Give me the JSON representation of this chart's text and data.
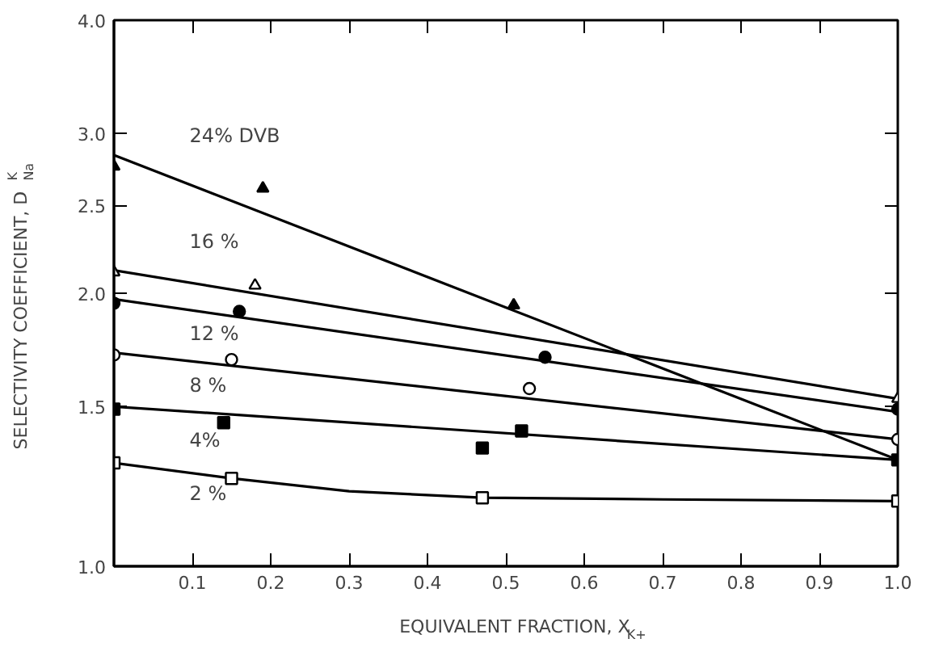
{
  "chart_data": {
    "type": "scatter",
    "xlabel": "EQUIVALENT FRACTION, X$_{K+}$",
    "ylabel": "SELECTIVITY COEFFICIENT, D$^{K}$$_{Na}$",
    "log": "y",
    "grid": false,
    "xlim": [
      0,
      1.0
    ],
    "ylim": [
      1.0,
      4.0
    ],
    "xticks": [
      {
        "value": 0.1,
        "label": "0.1"
      },
      {
        "value": 0.2,
        "label": "0.2"
      },
      {
        "value": 0.3,
        "label": "0.3"
      },
      {
        "value": 0.4,
        "label": "0.4"
      },
      {
        "value": 0.5,
        "label": "0.5"
      },
      {
        "value": 0.6,
        "label": "0.6"
      },
      {
        "value": 0.7,
        "label": "0.7"
      },
      {
        "value": 0.8,
        "label": "0.8"
      },
      {
        "value": 0.9,
        "label": "0.9"
      },
      {
        "value": 1.0,
        "label": "1.0"
      }
    ],
    "yticks": [
      {
        "value": 1.0,
        "label": "1.0"
      },
      {
        "value": 1.5,
        "label": "1.5"
      },
      {
        "value": 2.0,
        "label": "2.0"
      },
      {
        "value": 2.5,
        "label": "2.5"
      },
      {
        "value": 3.0,
        "label": "3.0"
      },
      {
        "value": 4.0,
        "label": "4.0"
      }
    ],
    "series": [
      {
        "name": "24% DVB",
        "marker": "triangle",
        "color": "#000000",
        "x": [
          0,
          0.19,
          0.51
        ],
        "values": [
          2.76,
          2.61,
          1.94
        ]
      },
      {
        "name": "16 %",
        "marker": "triangle",
        "color": "#ffffff",
        "x": [
          0,
          0.18,
          1.0
        ],
        "values": [
          2.11,
          2.04,
          1.53
        ]
      },
      {
        "name": "12 %",
        "marker": "circle",
        "color": "#000000",
        "x": [
          0,
          0.16,
          0.55,
          1.0
        ],
        "values": [
          1.95,
          1.91,
          1.7,
          1.49
        ]
      },
      {
        "name": "8 %",
        "marker": "circle",
        "color": "#ffffff",
        "x": [
          0,
          0.15,
          0.53,
          1.0
        ],
        "values": [
          1.71,
          1.69,
          1.57,
          1.38
        ]
      },
      {
        "name": "4%",
        "marker": "square",
        "color": "#000000",
        "x": [
          0,
          0.14,
          0.47,
          0.52,
          1.0
        ],
        "values": [
          1.49,
          1.44,
          1.35,
          1.41,
          1.31
        ]
      },
      {
        "name": "2 %",
        "marker": "square",
        "color": "#ffffff",
        "x": [
          0,
          0.15,
          0.47,
          1.0
        ],
        "values": [
          1.3,
          1.25,
          1.19,
          1.18
        ]
      },
      {
        "type": "line",
        "color": "#000000",
        "line_style": "solid",
        "x": [
          0,
          1.0
        ],
        "values": [
          2.84,
          1.31
        ]
      },
      {
        "type": "line",
        "color": "#000000",
        "line_style": "solid",
        "x": [
          0,
          1.0
        ],
        "values": [
          2.12,
          1.53
        ]
      },
      {
        "type": "line",
        "color": "#000000",
        "line_style": "solid",
        "x": [
          0,
          1.0
        ],
        "values": [
          1.97,
          1.48
        ]
      },
      {
        "type": "line",
        "color": "#000000",
        "line_style": "solid",
        "x": [
          0,
          1.0
        ],
        "values": [
          1.72,
          1.38
        ]
      },
      {
        "type": "line",
        "color": "#000000",
        "line_style": "solid",
        "x": [
          0,
          1.0
        ],
        "values": [
          1.5,
          1.31
        ]
      },
      {
        "type": "line",
        "color": "#000000",
        "line_style": "solid",
        "x": [
          0,
          0.15,
          0.3,
          0.47,
          0.7,
          1.0
        ],
        "values": [
          1.3,
          1.25,
          1.21,
          1.19,
          1.185,
          1.18
        ]
      }
    ]
  }
}
